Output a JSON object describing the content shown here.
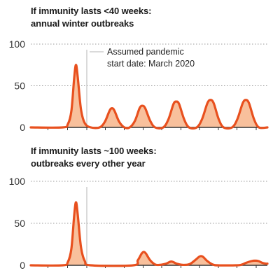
{
  "chart_data": [
    {
      "type": "area",
      "title": "If immunity lasts <40 weeks:",
      "subtitle": "annual winter outbreaks",
      "ylim": [
        0,
        100
      ],
      "yticks": [
        0,
        50,
        100
      ],
      "grid": true,
      "annotation": {
        "line1": "Assumed pandemic",
        "line2": "start date: March 2020"
      },
      "series": [
        {
          "values": [
            {
              "x": 0,
              "y": 0
            },
            {
              "x": 9,
              "y": 0
            },
            {
              "x": 10.5,
              "y": 4
            },
            {
              "x": 11.5,
              "y": 20
            },
            {
              "x": 12.3,
              "y": 60
            },
            {
              "x": 12.8,
              "y": 75
            },
            {
              "x": 13.3,
              "y": 60
            },
            {
              "x": 14.2,
              "y": 22
            },
            {
              "x": 15.3,
              "y": 5
            },
            {
              "x": 17,
              "y": 0
            },
            {
              "x": 19.5,
              "y": 0
            },
            {
              "x": 21,
              "y": 7
            },
            {
              "x": 22.3,
              "y": 20
            },
            {
              "x": 23,
              "y": 23
            },
            {
              "x": 23.7,
              "y": 20
            },
            {
              "x": 25,
              "y": 7
            },
            {
              "x": 26.5,
              "y": 0
            },
            {
              "x": 28,
              "y": 0
            },
            {
              "x": 29.5,
              "y": 8
            },
            {
              "x": 30.8,
              "y": 23
            },
            {
              "x": 31.6,
              "y": 26
            },
            {
              "x": 32.4,
              "y": 23
            },
            {
              "x": 33.8,
              "y": 8
            },
            {
              "x": 35.2,
              "y": 0
            },
            {
              "x": 37.5,
              "y": 0
            },
            {
              "x": 39,
              "y": 10
            },
            {
              "x": 40.4,
              "y": 28
            },
            {
              "x": 41.2,
              "y": 31
            },
            {
              "x": 42,
              "y": 28
            },
            {
              "x": 43.4,
              "y": 10
            },
            {
              "x": 44.8,
              "y": 0
            },
            {
              "x": 47,
              "y": 0
            },
            {
              "x": 48.5,
              "y": 10
            },
            {
              "x": 50,
              "y": 29
            },
            {
              "x": 50.9,
              "y": 33
            },
            {
              "x": 51.8,
              "y": 29
            },
            {
              "x": 53.2,
              "y": 10
            },
            {
              "x": 54.6,
              "y": 0
            },
            {
              "x": 57,
              "y": 0
            },
            {
              "x": 58.5,
              "y": 10
            },
            {
              "x": 60,
              "y": 29
            },
            {
              "x": 60.9,
              "y": 33
            },
            {
              "x": 61.8,
              "y": 29
            },
            {
              "x": 63.2,
              "y": 10
            },
            {
              "x": 64.6,
              "y": 0
            },
            {
              "x": 67,
              "y": 0
            }
          ]
        }
      ]
    },
    {
      "type": "area",
      "title": "If immunity lasts ~100 weeks:",
      "subtitle": "outbreaks every other year",
      "ylim": [
        0,
        100
      ],
      "yticks": [
        0,
        50,
        100
      ],
      "grid": true,
      "series": [
        {
          "values": [
            {
              "x": 0,
              "y": 0
            },
            {
              "x": 9,
              "y": 0
            },
            {
              "x": 10.5,
              "y": 4
            },
            {
              "x": 11.5,
              "y": 20
            },
            {
              "x": 12.3,
              "y": 60
            },
            {
              "x": 12.8,
              "y": 75
            },
            {
              "x": 13.3,
              "y": 60
            },
            {
              "x": 14.2,
              "y": 22
            },
            {
              "x": 15.3,
              "y": 5
            },
            {
              "x": 17,
              "y": 0
            },
            {
              "x": 29,
              "y": 0
            },
            {
              "x": 30.3,
              "y": 6
            },
            {
              "x": 31.4,
              "y": 14
            },
            {
              "x": 32,
              "y": 16
            },
            {
              "x": 32.6,
              "y": 14
            },
            {
              "x": 33.8,
              "y": 6
            },
            {
              "x": 35.2,
              "y": 1
            },
            {
              "x": 36.5,
              "y": 0.5
            },
            {
              "x": 38.3,
              "y": 2
            },
            {
              "x": 39.8,
              "y": 4.5
            },
            {
              "x": 41.3,
              "y": 2
            },
            {
              "x": 43,
              "y": 0.5
            },
            {
              "x": 45,
              "y": 1.5
            },
            {
              "x": 46.5,
              "y": 6
            },
            {
              "x": 47.6,
              "y": 10
            },
            {
              "x": 48.2,
              "y": 11
            },
            {
              "x": 48.8,
              "y": 10
            },
            {
              "x": 50,
              "y": 5
            },
            {
              "x": 51.5,
              "y": 1
            },
            {
              "x": 53,
              "y": 0
            },
            {
              "x": 58,
              "y": 0
            },
            {
              "x": 59.5,
              "y": 0.5
            },
            {
              "x": 61,
              "y": 3
            },
            {
              "x": 62.5,
              "y": 5
            },
            {
              "x": 63.5,
              "y": 5.5
            },
            {
              "x": 64.5,
              "y": 5
            },
            {
              "x": 65.5,
              "y": 3
            },
            {
              "x": 66.5,
              "y": 2
            },
            {
              "x": 67,
              "y": 2
            }
          ]
        }
      ]
    }
  ],
  "colors": {
    "line": "#e8501e",
    "fill": "#f8c09c",
    "grid": "#9a9a9a",
    "baseline": "#333333",
    "annotation_line": "#b4b4b4"
  }
}
